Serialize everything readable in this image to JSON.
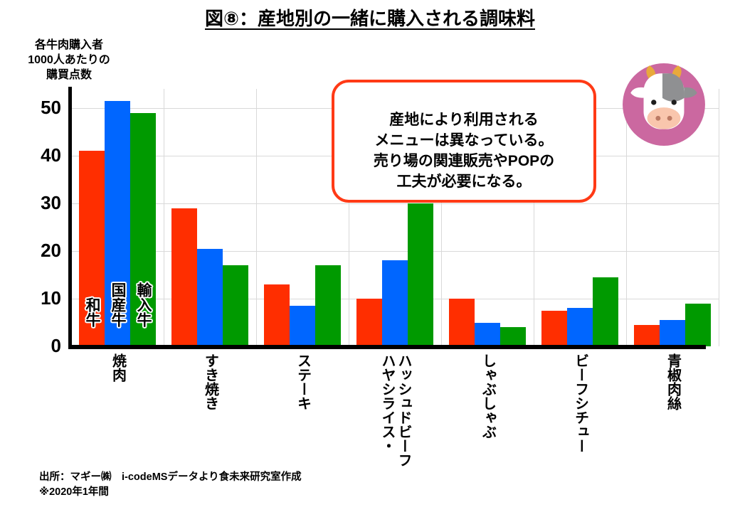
{
  "title": "図⑧：産地別の一緒に購入される調味料",
  "annotation": {
    "text": "産地により利用される\nメニューは異なっている。\n売り場の関連販売やPOPの\n工夫が必要になる。",
    "border_color": "#ff3a16"
  },
  "icon": {
    "name": "cow-icon",
    "circle_color": "#cb68a0"
  },
  "source": {
    "line1": "出所：マギー㈱　i-codeMSデータより食未来研究室作成",
    "line2": "※2020年1年間"
  },
  "chart_data": {
    "type": "bar",
    "title": "図⑧：産地別の一緒に購入される調味料",
    "ylabel": "各牛肉購入者\n1000人あたりの\n購買点数",
    "xlabel": "",
    "categories": [
      "焼肉",
      "すき焼き",
      "ステーキ",
      "ハッシュドビーフ・ハヤシライス",
      "しゃぶしゃぶ",
      "ビーフシチュー",
      "青椒肉絲"
    ],
    "category_display": [
      "焼肉",
      "すき焼き",
      "ステーキ",
      "ハッシュドビーフ\nハヤシライス・",
      "しゃぶしゃぶ",
      "ビーフシチュー",
      "青椒肉絲"
    ],
    "series": [
      {
        "name": "和牛",
        "color": "#ff2e00",
        "values": [
          41,
          29,
          13,
          10,
          10,
          7.5,
          4.5
        ]
      },
      {
        "name": "国産牛",
        "color": "#0066ff",
        "values": [
          51.5,
          20.5,
          8.5,
          18,
          5,
          8,
          5.5
        ]
      },
      {
        "name": "輸入牛",
        "color": "#009a00",
        "values": [
          49,
          17,
          17,
          30,
          4,
          14.5,
          9
        ]
      }
    ],
    "ylim": [
      0,
      55
    ],
    "yticks": [
      0,
      10,
      20,
      30,
      40,
      50
    ],
    "grid": true,
    "legend_position": "labels-on-first-group-bars"
  }
}
